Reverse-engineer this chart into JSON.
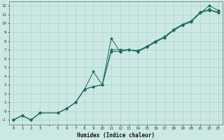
{
  "bg_color": "#cce8e4",
  "grid_color": "#aad4cc",
  "line_color": "#1a6b5a",
  "xlabel": "Humidex (Indice chaleur)",
  "line1_x": [
    0,
    1,
    2,
    3,
    5,
    6,
    7,
    8,
    9,
    10,
    11,
    12,
    13,
    14,
    15,
    16,
    17,
    18,
    19,
    20,
    21,
    22,
    23
  ],
  "line1_y": [
    -1,
    -0.5,
    -1,
    -0.2,
    -0.2,
    0.3,
    1.0,
    2.5,
    4.5,
    3.0,
    8.3,
    6.8,
    7.0,
    6.8,
    7.3,
    7.9,
    8.4,
    9.2,
    9.8,
    10.2,
    11.2,
    12.0,
    11.5
  ],
  "line2_x": [
    0,
    1,
    2,
    3,
    5,
    6,
    7,
    8,
    9,
    10,
    11,
    12,
    13,
    14,
    15,
    16,
    17,
    18,
    19,
    20,
    21,
    22,
    23
  ],
  "line2_y": [
    -1,
    -0.5,
    -1,
    -0.2,
    -0.2,
    0.3,
    1.0,
    2.5,
    2.8,
    3.0,
    6.8,
    6.8,
    7.0,
    6.8,
    7.3,
    7.9,
    8.4,
    9.2,
    9.8,
    10.2,
    11.2,
    11.5,
    11.2
  ],
  "line3_x": [
    0,
    1,
    2,
    3,
    5,
    6,
    7,
    8,
    9,
    10,
    11,
    12,
    13,
    14,
    15,
    16,
    17,
    18,
    19,
    20,
    21,
    22,
    23
  ],
  "line3_y": [
    -1,
    -0.5,
    -1,
    -0.2,
    -0.2,
    0.3,
    1.0,
    2.5,
    2.8,
    3.0,
    7.0,
    7.0,
    7.0,
    6.9,
    7.4,
    8.0,
    8.5,
    9.3,
    9.9,
    10.3,
    11.3,
    11.6,
    11.3
  ],
  "xlim": [
    -0.5,
    23.5
  ],
  "ylim": [
    -1.5,
    12.5
  ],
  "xtick_labels_skip4": true,
  "yticks_range": [
    -1,
    12
  ]
}
